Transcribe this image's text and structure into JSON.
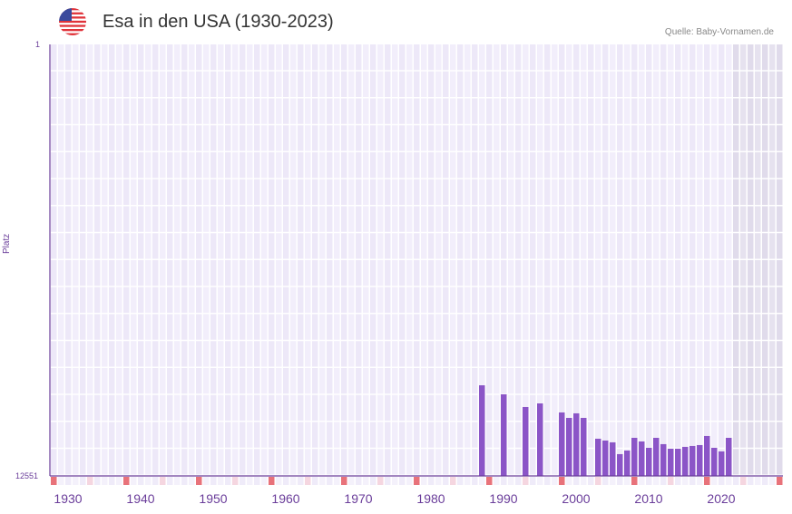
{
  "header": {
    "title": "Esa in den USA (1930-2023)",
    "source": "Quelle: Baby-Vornamen.de",
    "flag_icon": "us-flag-icon"
  },
  "colors": {
    "bar": "#8b55c7",
    "axis": "#6a3d9a",
    "decade_marker": "#e8727a",
    "half_decade_marker": "#f5d6e0",
    "grid_bg_a": "#f2eefb",
    "grid_bg_b": "#ede8f8",
    "future_shade": "#e4e0ee"
  },
  "axis": {
    "y_title": "Platz",
    "y_top": "1",
    "y_bottom": "12551",
    "x_ticks": [
      "1930",
      "1940",
      "1950",
      "1960",
      "1970",
      "1980",
      "1990",
      "2000",
      "2010",
      "2020"
    ]
  },
  "chart_data": {
    "type": "bar",
    "title": "Esa in den USA (1930-2023)",
    "xlabel": "",
    "ylabel": "Platz",
    "ylim": [
      12551,
      1
    ],
    "y_inverted": true,
    "x_range": [
      1928,
      2028
    ],
    "shaded_future_from": 2022,
    "categories": [
      1987,
      1990,
      1993,
      1995,
      1998,
      1999,
      2000,
      2001,
      2003,
      2004,
      2005,
      2006,
      2007,
      2008,
      2009,
      2010,
      2011,
      2012,
      2013,
      2014,
      2015,
      2016,
      2017,
      2018,
      2019,
      2020,
      2021
    ],
    "values": [
      9915,
      10178,
      10547,
      10442,
      10705,
      10863,
      10731,
      10863,
      11469,
      11522,
      11574,
      11917,
      11812,
      11443,
      11548,
      11733,
      11443,
      11627,
      11759,
      11759,
      11706,
      11680,
      11654,
      11390,
      11733,
      11838,
      11443
    ],
    "legend": []
  }
}
